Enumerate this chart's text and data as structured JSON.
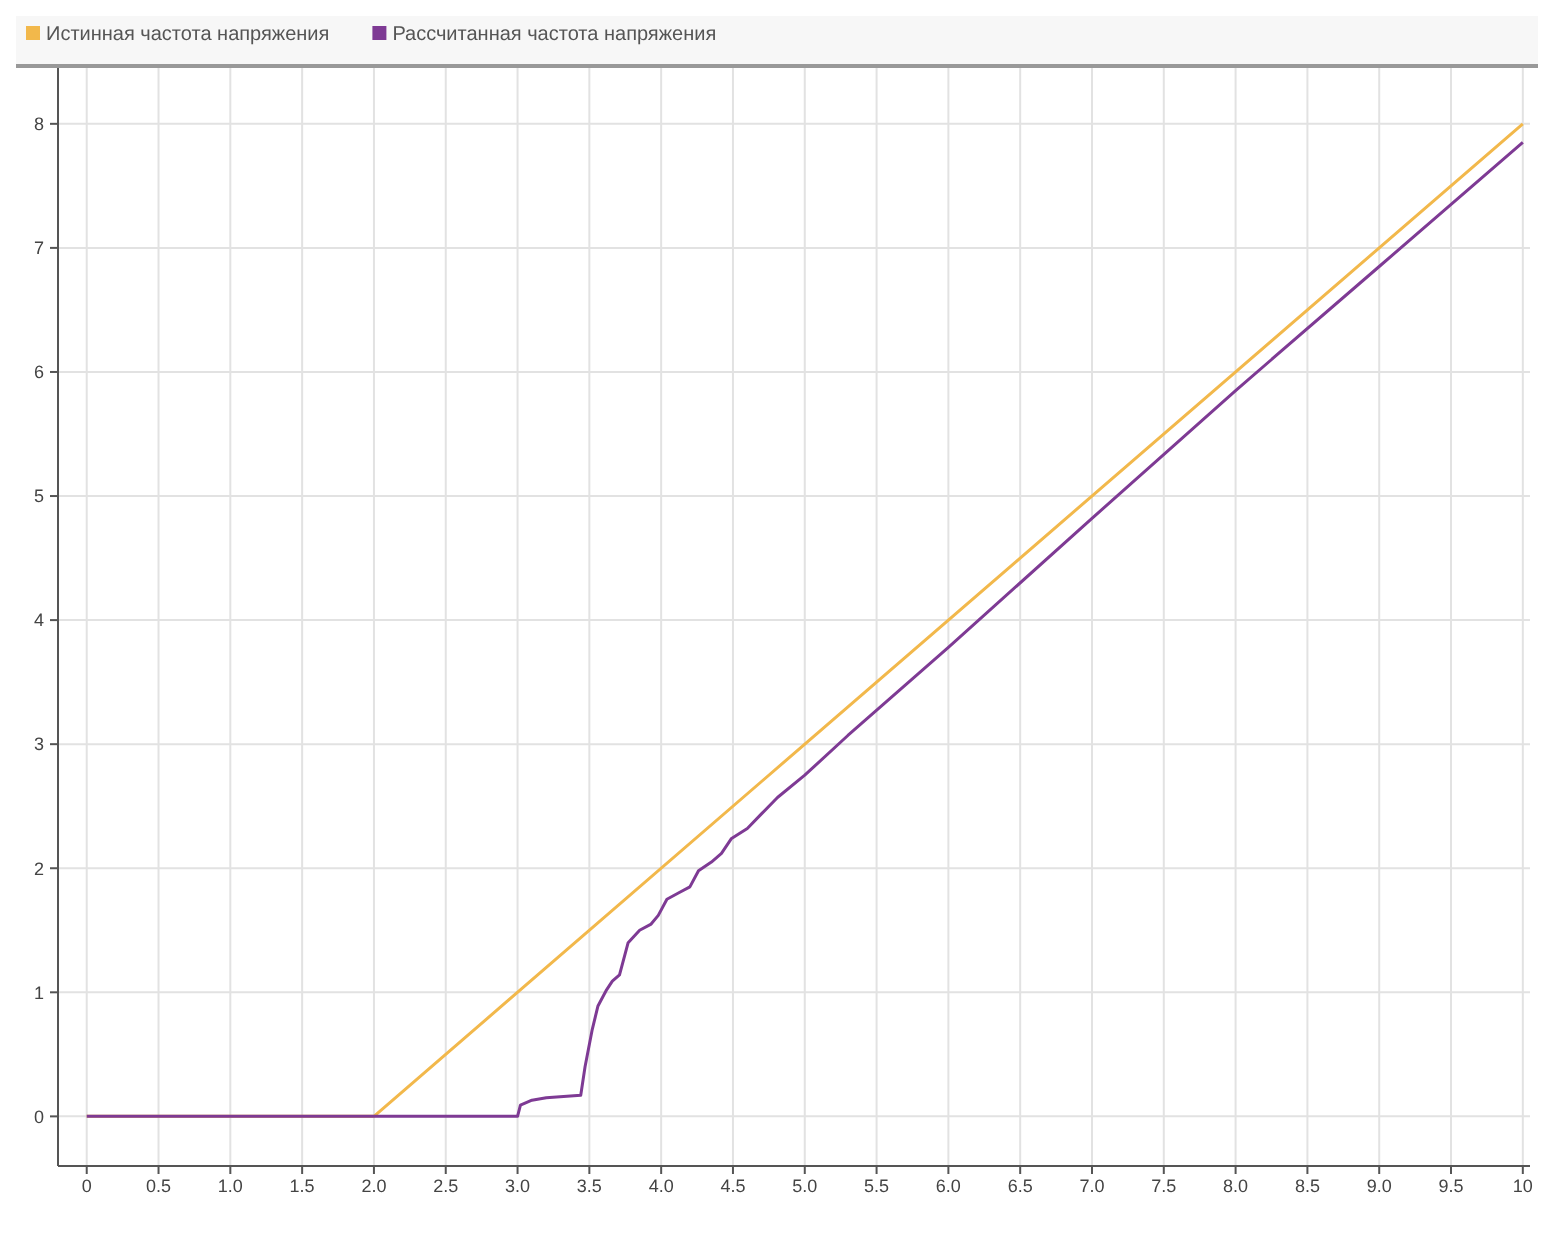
{
  "chart_data": {
    "type": "line",
    "series": [
      {
        "name": "Истинная частота напряжения",
        "color": "#f2b84b",
        "x": [
          0,
          2,
          10
        ],
        "values": [
          0,
          0,
          8
        ]
      },
      {
        "name": "Рассчитанная частота напряжения",
        "color": "#7e3a94",
        "x": [
          0,
          3.0,
          3.02,
          3.1,
          3.2,
          3.44,
          3.47,
          3.52,
          3.56,
          3.62,
          3.66,
          3.71,
          3.77,
          3.85,
          3.93,
          3.98,
          4.04,
          4.12,
          4.2,
          4.26,
          4.35,
          4.42,
          4.49,
          4.6,
          4.7,
          4.81,
          5.0,
          5.3,
          6.0,
          7.0,
          8.0,
          9.0,
          10.0
        ],
        "values": [
          0,
          0,
          0.09,
          0.13,
          0.15,
          0.17,
          0.4,
          0.7,
          0.89,
          1.02,
          1.09,
          1.14,
          1.4,
          1.5,
          1.55,
          1.62,
          1.75,
          1.8,
          1.85,
          1.98,
          2.05,
          2.12,
          2.24,
          2.32,
          2.44,
          2.57,
          2.75,
          3.07,
          3.78,
          4.82,
          5.85,
          6.85,
          7.85
        ]
      }
    ],
    "xlim": [
      -0.2,
      10.05
    ],
    "ylim": [
      -0.4,
      8.45
    ],
    "xticks": [
      0,
      {
        "value": 0.5,
        "label": "0.5"
      },
      {
        "value": 1,
        "label": "1.0"
      },
      {
        "value": 1.5,
        "label": "1.5"
      },
      {
        "value": 2,
        "label": "2.0"
      },
      {
        "value": 2.5,
        "label": "2.5"
      },
      {
        "value": 3,
        "label": "3.0"
      },
      {
        "value": 3.5,
        "label": "3.5"
      },
      {
        "value": 4,
        "label": "4.0"
      },
      {
        "value": 4.5,
        "label": "4.5"
      },
      {
        "value": 5,
        "label": "5.0"
      },
      {
        "value": 5.5,
        "label": "5.5"
      },
      {
        "value": 6,
        "label": "6.0"
      },
      {
        "value": 6.5,
        "label": "6.5"
      },
      {
        "value": 7,
        "label": "7.0"
      },
      {
        "value": 7.5,
        "label": "7.5"
      },
      {
        "value": 8,
        "label": "8.0"
      },
      {
        "value": 8.5,
        "label": "8.5"
      },
      {
        "value": 9,
        "label": "9.0"
      },
      {
        "value": 9.5,
        "label": "9.5"
      },
      {
        "value": 10,
        "label": "10"
      }
    ],
    "yticks": [
      0,
      1,
      2,
      3,
      4,
      5,
      6,
      7,
      8
    ],
    "grid": true,
    "legend": "top left",
    "marker": "none",
    "line_style": "solid"
  }
}
